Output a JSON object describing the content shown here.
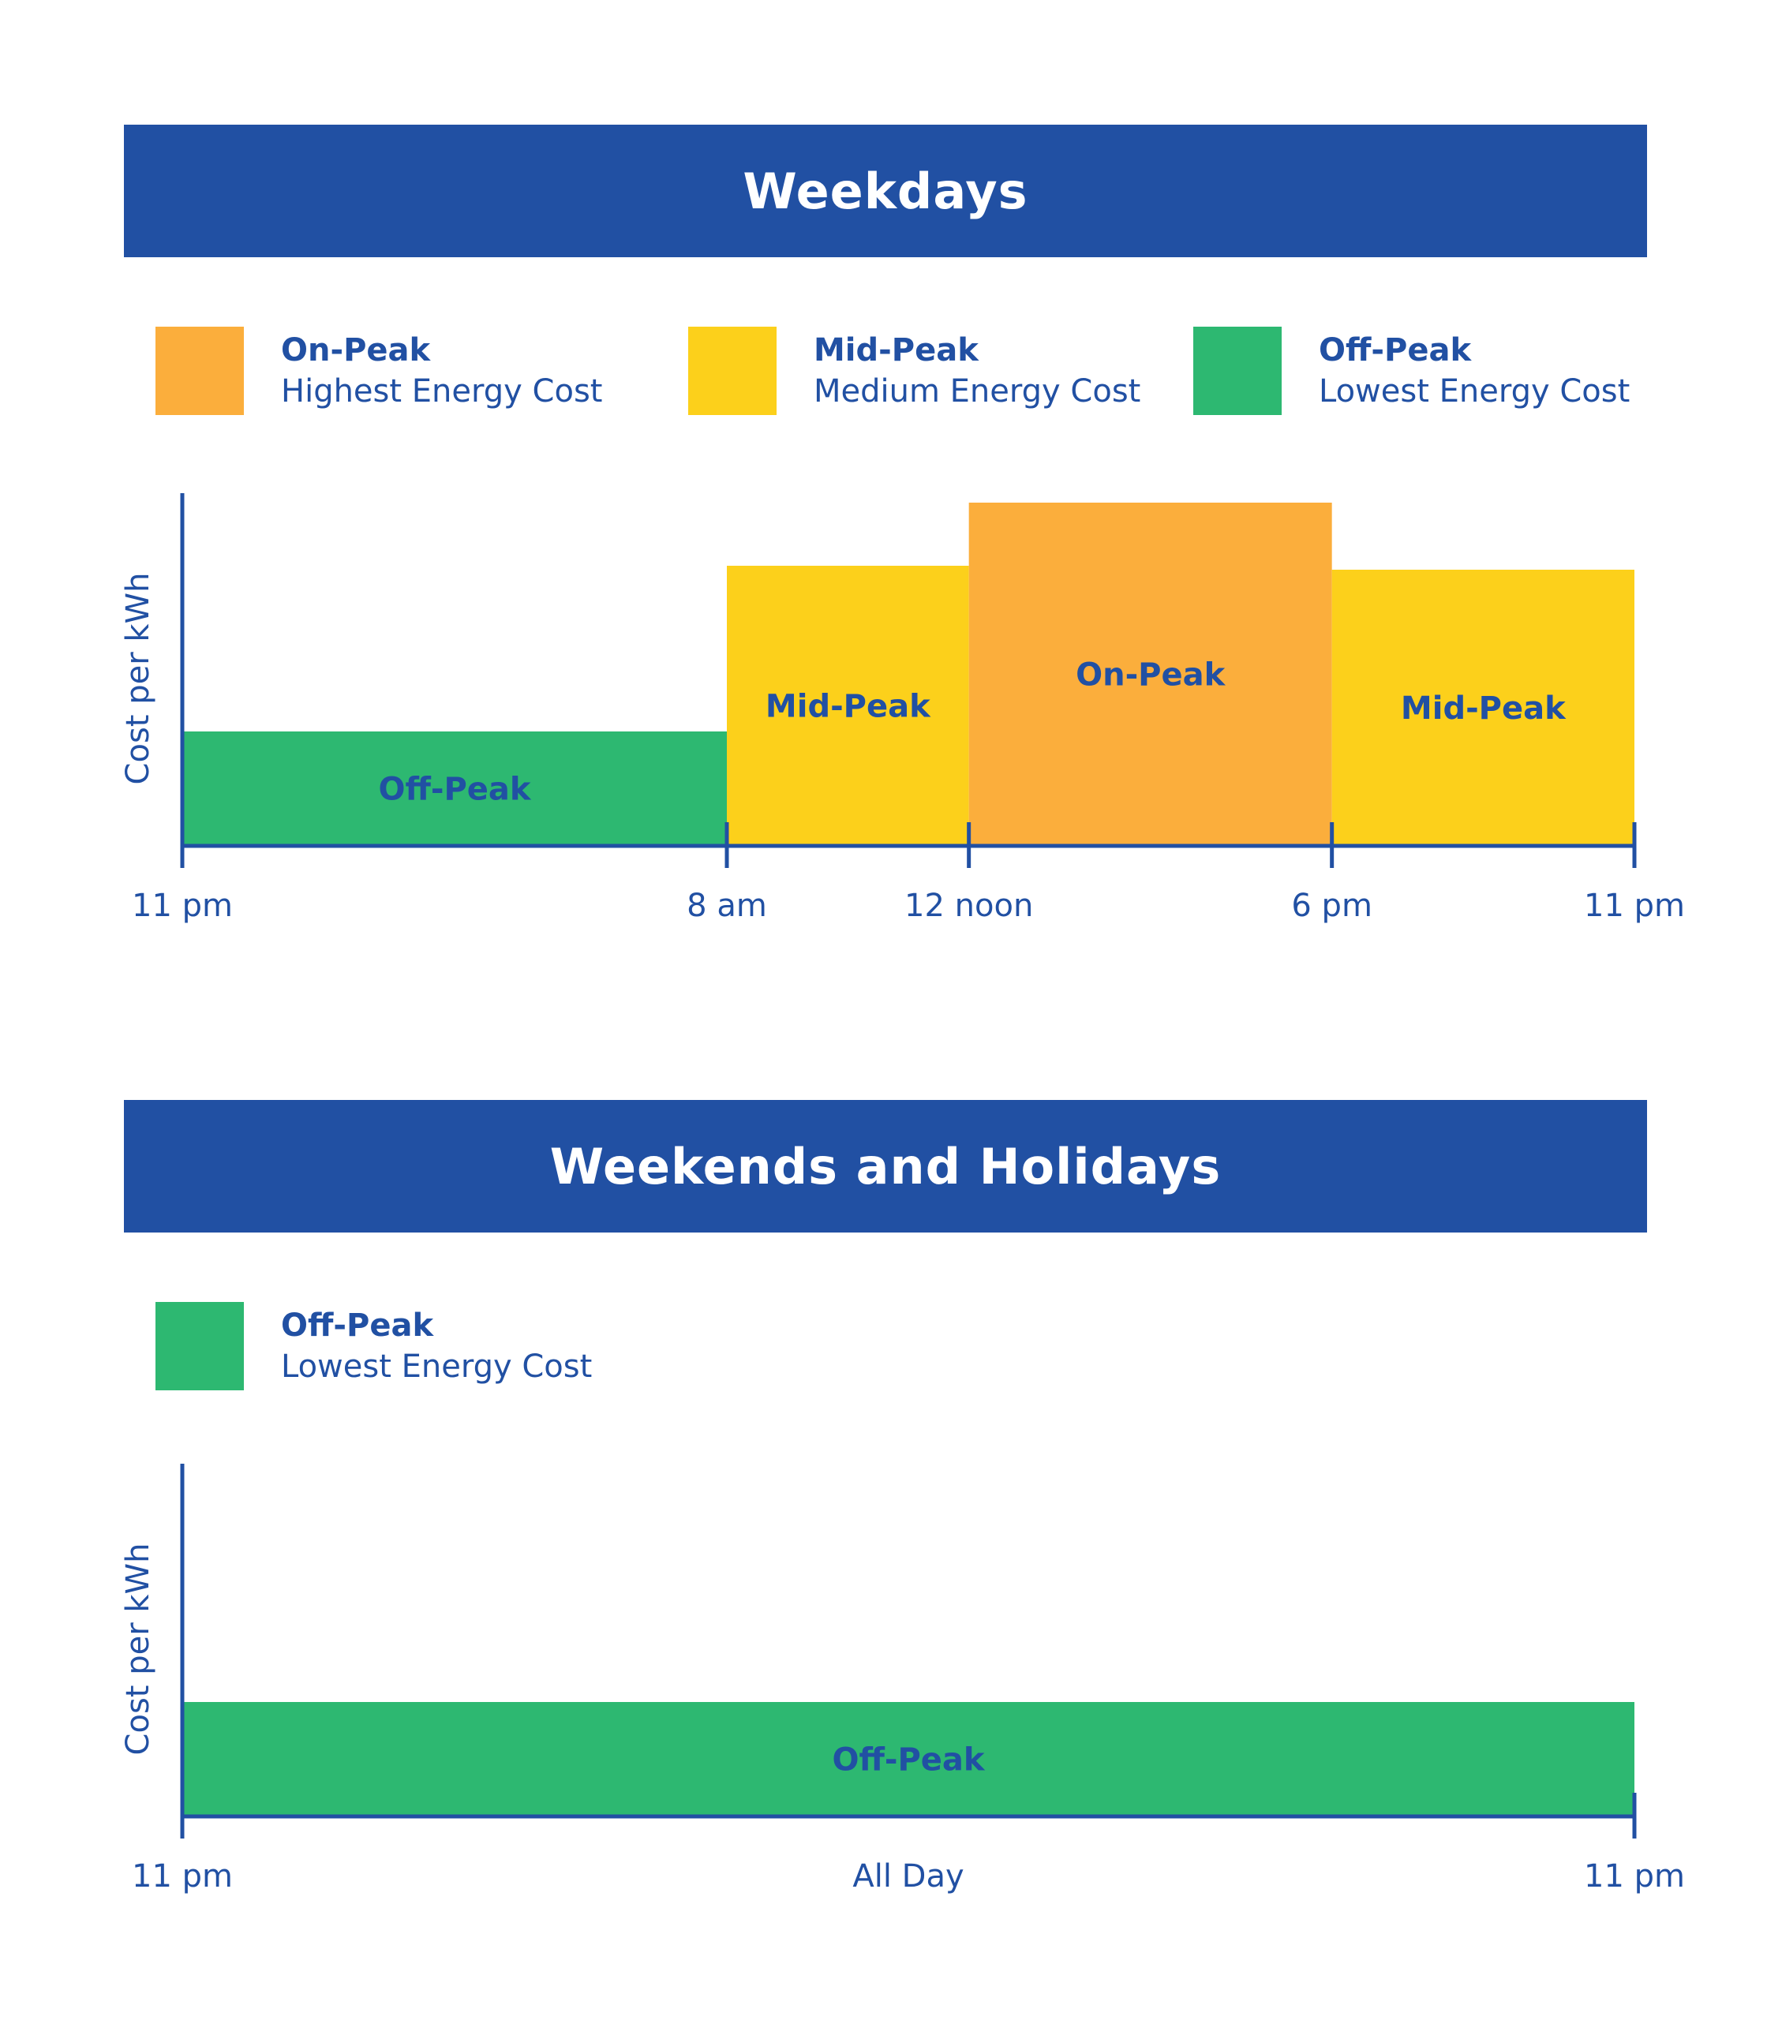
{
  "colors": {
    "on_peak": "#fbae3c",
    "mid_peak": "#fcd01b",
    "off_peak": "#2db871",
    "axis": "#2150a3"
  },
  "weekdays": {
    "title": "Weekdays",
    "legend": [
      {
        "name": "On-Peak",
        "desc": "Highest Energy Cost"
      },
      {
        "name": "Mid-Peak",
        "desc": "Medium Energy Cost"
      },
      {
        "name": "Off-Peak",
        "desc": "Lowest Energy Cost"
      }
    ]
  },
  "weekends": {
    "title": "Weekends and Holidays",
    "legend": [
      {
        "name": "Off-Peak",
        "desc": "Lowest Energy Cost"
      }
    ]
  },
  "chart_data": [
    {
      "type": "bar",
      "title": "Weekdays",
      "ylabel": "Cost per kWh",
      "xlabel": "",
      "grid": false,
      "legend_placement": "top",
      "x_ticks": [
        "11 pm",
        "8 am",
        "12 noon",
        "6 pm",
        "11 pm"
      ],
      "x_tick_hours": [
        0,
        9,
        13,
        19,
        24
      ],
      "ylim": [
        0,
        100
      ],
      "bars": [
        {
          "label": "Off-Peak",
          "tier": "off_peak",
          "start_hour": 0,
          "end_hour": 9,
          "value": 29
        },
        {
          "label": "Mid-Peak",
          "tier": "mid_peak",
          "start_hour": 9,
          "end_hour": 13,
          "value": 71
        },
        {
          "label": "On-Peak",
          "tier": "on_peak",
          "start_hour": 13,
          "end_hour": 19,
          "value": 87
        },
        {
          "label": "Mid-Peak",
          "tier": "mid_peak",
          "start_hour": 19,
          "end_hour": 24,
          "value": 70
        }
      ]
    },
    {
      "type": "bar",
      "title": "Weekends and Holidays",
      "ylabel": "Cost per kWh",
      "xlabel": "",
      "grid": false,
      "legend_placement": "top",
      "x_ticks": [
        "11 pm",
        "All Day",
        "11 pm"
      ],
      "x_tick_hours": [
        0,
        12,
        24
      ],
      "ylim": [
        0,
        100
      ],
      "bars": [
        {
          "label": "Off-Peak",
          "tier": "off_peak",
          "start_hour": 0,
          "end_hour": 24,
          "value": 29
        }
      ]
    }
  ]
}
